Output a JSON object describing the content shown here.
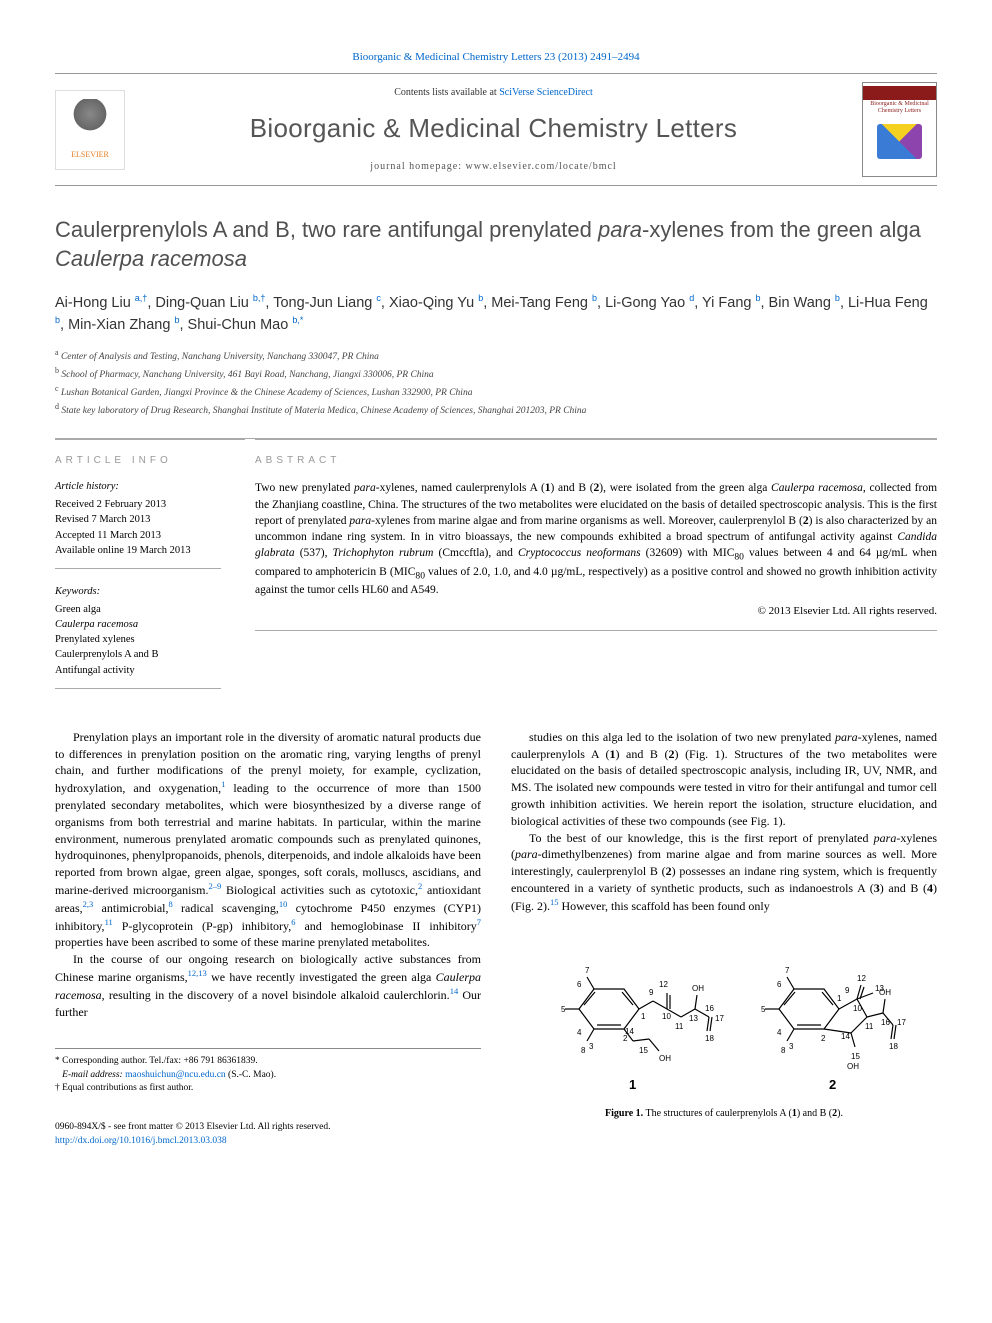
{
  "top_citation": "Bioorganic & Medicinal Chemistry Letters 23 (2013) 2491–2494",
  "header": {
    "contents_prefix": "Contents lists available at ",
    "contents_link": "SciVerse ScienceDirect",
    "journal_name": "Bioorganic & Medicinal Chemistry Letters",
    "homepage_label": "journal homepage: www.elsevier.com/locate/bmcl",
    "publisher_logo_text": "ELSEVIER",
    "cover_line1": "Bioorganic & Medicinal",
    "cover_line2": "Chemistry Letters"
  },
  "title_html": "Caulerprenylols A and B, two rare antifungal prenylated <em>para</em>-xylenes from the green alga <em>Caulerpa racemosa</em>",
  "authors_html": "Ai-Hong Liu <sup>a,†</sup>, Ding-Quan Liu <sup>b,†</sup>, Tong-Jun Liang <sup>c</sup>, Xiao-Qing Yu <sup>b</sup>, Mei-Tang Feng <sup>b</sup>, Li-Gong Yao <sup>d</sup>, Yi Fang <sup>b</sup>, Bin Wang <sup>b</sup>, Li-Hua Feng <sup>b</sup>, Min-Xian Zhang <sup>b</sup>, Shui-Chun Mao <sup>b,*</sup>",
  "affiliations": [
    "a Center of Analysis and Testing, Nanchang University, Nanchang 330047, PR China",
    "b School of Pharmacy, Nanchang University, 461 Bayi Road, Nanchang, Jiangxi 330006, PR China",
    "c Lushan Botanical Garden, Jiangxi Province & the Chinese Academy of Sciences, Lushan 332900, PR China",
    "d State key laboratory of Drug Research, Shanghai Institute of Materia Medica, Chinese Academy of Sciences, Shanghai 201203, PR China"
  ],
  "info": {
    "header": "ARTICLE INFO",
    "hist_label": "Article history:",
    "dates": [
      "Received 2 February 2013",
      "Revised 7 March 2013",
      "Accepted 11 March 2013",
      "Available online 19 March 2013"
    ],
    "kw_label": "Keywords:",
    "keywords": [
      "Green alga",
      "Caulerpa racemosa",
      "Prenylated xylenes",
      "Caulerprenylols A and B",
      "Antifungal activity"
    ]
  },
  "abstract": {
    "header": "ABSTRACT",
    "text_html": "Two new prenylated <em>para</em>-xylenes, named caulerprenylols A (<b>1</b>) and B (<b>2</b>), were isolated from the green alga <em>Caulerpa racemosa</em>, collected from the Zhanjiang coastline, China. The structures of the two metabolites were elucidated on the basis of detailed spectroscopic analysis. This is the first report of prenylated <em>para</em>-xylenes from marine algae and from marine organisms as well. Moreover, caulerprenylol B (<b>2</b>) is also characterized by an uncommon indane ring system. In in vitro bioassays, the new compounds exhibited a broad spectrum of antifungal activity against <em>Candida glabrata</em> (537), <em>Trichophyton rubrum</em> (Cmccftla), and <em>Cryptococcus neoformans</em> (32609) with MIC<sub>80</sub> values between 4 and 64 µg/mL when compared to amphotericin B (MIC<sub>80</sub> values of 2.0, 1.0, and 4.0 µg/mL, respectively) as a positive control and showed no growth inhibition activity against the tumor cells HL60 and A549.",
    "copyright": "© 2013 Elsevier Ltd. All rights reserved."
  },
  "body": {
    "left_p1_html": "Prenylation plays an important role in the diversity of aromatic natural products due to differences in prenylation position on the aromatic ring, varying lengths of prenyl chain, and further modifications of the prenyl moiety, for example, cyclization, hydroxylation, and oxygenation,<sup>1</sup> leading to the occurrence of more than 1500 prenylated secondary metabolites, which were biosynthesized by a diverse range of organisms from both terrestrial and marine habitats. In particular, within the marine environment, numerous prenylated aromatic compounds such as prenylated quinones, hydroquinones, phenylpropanoids, phenols, diterpenoids, and indole alkaloids have been reported from brown algae, green algae, sponges, soft corals, molluscs, ascidians, and marine-derived microorganism.<sup>2–9</sup> Biological activities such as cytotoxic,<sup>2</sup> antioxidant areas,<sup>2,3</sup> antimicrobial,<sup>8</sup> radical scavenging,<sup>10</sup> cytochrome P450 enzymes (CYP1) inhibitory,<sup>11</sup> P-glycoprotein (P-gp) inhibitory,<sup>6</sup> and hemoglobinase II inhibitory<sup>7</sup> properties have been ascribed to some of these marine prenylated metabolites.",
    "left_p2_html": "In the course of our ongoing research on biologically active substances from Chinese marine organisms,<sup>12,13</sup> we have recently investigated the green alga <em>Caulerpa racemosa</em>, resulting in the discovery of a novel bisindole alkaloid caulerchlorin.<sup>14</sup> Our further",
    "right_p1_html": "studies on this alga led to the isolation of two new prenylated <em>para</em>-xylenes, named caulerprenylols A (<b>1</b>) and B (<b>2</b>) (Fig. 1). Structures of the two metabolites were elucidated on the basis of detailed spectroscopic analysis, including IR, UV, NMR, and MS. The isolated new compounds were tested in vitro for their antifungal and tumor cell growth inhibition activities. We herein report the isolation, structure elucidation, and biological activities of these two compounds (see Fig. 1).",
    "right_p2_html": "To the best of our knowledge, this is the first report of prenylated <em>para</em>-xylenes (<em>para</em>-dimethylbenzenes) from marine algae and from marine sources as well. More interestingly, caulerprenylol B (<b>2</b>) possesses an indane ring system, which is frequently encountered in a variety of synthetic products, such as indanoestrols A (<b>3</b>) and B (<b>4</b>) (Fig. 2).<sup>15</sup> However, this scaffold has been found only"
  },
  "figure1": {
    "caption_html": "<b>Figure 1.</b> The structures of caulerprenylols A (<b>1</b>) and B (<b>2</b>).",
    "struct1": {
      "atom_labels": [
        "7",
        "6",
        "5",
        "4",
        "3",
        "8",
        "2",
        "1",
        "9",
        "10",
        "11",
        "12",
        "OH",
        "13",
        "15",
        "14",
        "16",
        "17",
        "OH",
        "18"
      ],
      "compound_label": "1"
    },
    "struct2": {
      "atom_labels": [
        "7",
        "6",
        "5",
        "4",
        "3",
        "8",
        "2",
        "1",
        "9",
        "10",
        "11",
        "12",
        "13",
        "14",
        "15",
        "OH",
        "16",
        "17",
        "OH",
        "18"
      ],
      "compound_label": "2"
    },
    "style": {
      "stroke": "#000000",
      "stroke_width": 1.2,
      "label_fontsize": 8,
      "compound_fontsize": 13,
      "compound_fontweight": "bold"
    }
  },
  "footer": {
    "corr": "* Corresponding author. Tel./fax: +86 791 86361839.",
    "email_label": "E-mail address:",
    "email": "maoshuichun@ncu.edu.cn",
    "email_suffix": "(S.-C. Mao).",
    "equal": "† Equal contributions as first author."
  },
  "bottom": {
    "issn_line": "0960-894X/$ - see front matter © 2013 Elsevier Ltd. All rights reserved.",
    "doi": "http://dx.doi.org/10.1016/j.bmcl.2013.03.038"
  },
  "colors": {
    "link": "#0066cc",
    "heading_gray": "#505050",
    "rule": "#aaaaaa",
    "elsevier_orange": "#e67e22",
    "cover_red": "#8b1a1a"
  }
}
